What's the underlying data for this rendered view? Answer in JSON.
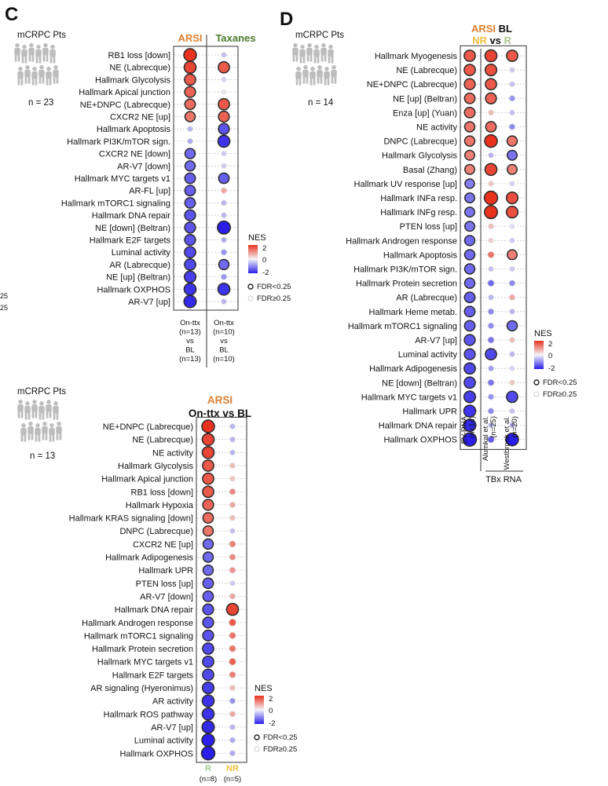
{
  "chart_data": [
    {
      "panel": "C",
      "type": "dotplot",
      "patients_title": "mCRPC Pts",
      "patients_n": "n = 23",
      "column_groups": [
        {
          "label": "ARSI",
          "color": "#e08030"
        },
        {
          "label": "Taxanes",
          "color": "#4a7a2a"
        }
      ],
      "columns": [
        [
          "On-ttx",
          "(n=13)",
          "vs",
          "BL",
          "(n=13)"
        ],
        [
          "On-ttx",
          "(n=10)",
          "vs",
          "BL",
          "(n=10)"
        ]
      ],
      "rows": [
        {
          "label": "RB1 loss [down]",
          "nes": [
            2.0,
            -0.5
          ],
          "fdr_sig": [
            true,
            false
          ]
        },
        {
          "label": "NE (Labrecque)",
          "nes": [
            1.8,
            1.6
          ],
          "fdr_sig": [
            true,
            true
          ]
        },
        {
          "label": "Hallmark Glycolysis",
          "nes": [
            1.6,
            -0.3
          ],
          "fdr_sig": [
            true,
            false
          ]
        },
        {
          "label": "Hallmark Apical junction",
          "nes": [
            1.5,
            -0.1
          ],
          "fdr_sig": [
            true,
            false
          ]
        },
        {
          "label": "NE+DNPC (Labrecque)",
          "nes": [
            1.4,
            1.6
          ],
          "fdr_sig": [
            true,
            true
          ]
        },
        {
          "label": "CXCR2 NE [up]",
          "nes": [
            1.3,
            1.5
          ],
          "fdr_sig": [
            true,
            true
          ]
        },
        {
          "label": "Hallmark Apoptosis",
          "nes": [
            -0.6,
            -1.5
          ],
          "fdr_sig": [
            false,
            true
          ]
        },
        {
          "label": "Hallmark PI3K/mTOR sign.",
          "nes": [
            -0.7,
            -1.8
          ],
          "fdr_sig": [
            false,
            true
          ]
        },
        {
          "label": "CXCR2 NE [down]",
          "nes": [
            -1.3,
            -0.4
          ],
          "fdr_sig": [
            true,
            false
          ]
        },
        {
          "label": "AR-V7 [down]",
          "nes": [
            -1.3,
            -0.4
          ],
          "fdr_sig": [
            true,
            false
          ]
        },
        {
          "label": "Hallmark MYC targets v1",
          "nes": [
            -1.4,
            -1.4
          ],
          "fdr_sig": [
            true,
            true
          ]
        },
        {
          "label": "AR-FL [up]",
          "nes": [
            -1.4,
            0.8
          ],
          "fdr_sig": [
            true,
            false
          ]
        },
        {
          "label": "Hallmark mTORC1 signaling",
          "nes": [
            -1.4,
            -0.6
          ],
          "fdr_sig": [
            true,
            false
          ]
        },
        {
          "label": "Hallmark DNA repair",
          "nes": [
            -1.5,
            -0.6
          ],
          "fdr_sig": [
            true,
            false
          ]
        },
        {
          "label": "NE [down] (Beltran)",
          "nes": [
            -1.5,
            -2.1
          ],
          "fdr_sig": [
            true,
            true
          ]
        },
        {
          "label": "Hallmark E2F targets",
          "nes": [
            -1.5,
            -0.7
          ],
          "fdr_sig": [
            true,
            false
          ]
        },
        {
          "label": "Luminal activity",
          "nes": [
            -1.6,
            -0.9
          ],
          "fdr_sig": [
            true,
            false
          ]
        },
        {
          "label": "AR (Labrecque)",
          "nes": [
            -1.6,
            -1.3
          ],
          "fdr_sig": [
            true,
            true
          ]
        },
        {
          "label": "NE [up] (Beltran)",
          "nes": [
            -1.7,
            -0.9
          ],
          "fdr_sig": [
            true,
            false
          ]
        },
        {
          "label": "Hallmark OXPHOS",
          "nes": [
            -1.8,
            -1.8
          ],
          "fdr_sig": [
            true,
            true
          ]
        },
        {
          "label": "AR-V7 [up]",
          "nes": [
            -1.9,
            -0.6
          ],
          "fdr_sig": [
            true,
            false
          ]
        }
      ],
      "legend": {
        "title": "NES",
        "ticks": [
          "2",
          "0",
          "-2"
        ],
        "fdr_sig": "FDR<0.25",
        "fdr_ns": "FDR≥0.25"
      }
    },
    {
      "panel": "D",
      "type": "dotplot",
      "patients_title": "mCRPC Pts",
      "patients_n": "n = 14",
      "header": [
        {
          "parts": [
            {
              "text": "ARSI",
              "color": "#e08030"
            },
            {
              "text": " BL",
              "color": "#111111"
            }
          ]
        },
        {
          "parts": [
            {
              "text": "NR",
              "color": "#f0c040"
            },
            {
              "text": " vs ",
              "color": "#111111"
            },
            {
              "text": "R",
              "color": "#a8c890"
            }
          ]
        }
      ],
      "columns": [
        [
          "EV-RNA",
          "(n=14)"
        ],
        [
          "Alumkal et al.",
          "(n=25)"
        ],
        [
          "Westbrook et al.",
          "(n=20)"
        ]
      ],
      "group_label": "TBx RNA",
      "rows": [
        {
          "label": "Hallmark Myogenesis",
          "nes": [
            1.6,
            1.8,
            1.6
          ],
          "fdr_sig": [
            true,
            true,
            true
          ]
        },
        {
          "label": "NE (Labrecque)",
          "nes": [
            1.6,
            1.7,
            -0.4
          ],
          "fdr_sig": [
            true,
            true,
            false
          ]
        },
        {
          "label": "NE+DNPC (Labrecque)",
          "nes": [
            1.5,
            1.6,
            -0.5
          ],
          "fdr_sig": [
            true,
            true,
            false
          ]
        },
        {
          "label": "NE [up] (Beltran)",
          "nes": [
            1.4,
            1.5,
            -0.9
          ],
          "fdr_sig": [
            true,
            true,
            false
          ]
        },
        {
          "label": "Enza [up] (Yuan)",
          "nes": [
            1.4,
            0.6,
            -0.5
          ],
          "fdr_sig": [
            true,
            false,
            false
          ]
        },
        {
          "label": "NE activity",
          "nes": [
            1.3,
            1.4,
            -1.0
          ],
          "fdr_sig": [
            true,
            true,
            false
          ]
        },
        {
          "label": "DNPC (Labrecque)",
          "nes": [
            1.3,
            2.0,
            1.3
          ],
          "fdr_sig": [
            true,
            true,
            true
          ]
        },
        {
          "label": "Hallmark Glycolysis",
          "nes": [
            1.2,
            -0.6,
            -1.2
          ],
          "fdr_sig": [
            true,
            false,
            true
          ]
        },
        {
          "label": "Basal (Zhang)",
          "nes": [
            1.2,
            1.8,
            1.2
          ],
          "fdr_sig": [
            true,
            true,
            true
          ]
        },
        {
          "label": "Hallmark UV response [up]",
          "nes": [
            -1.1,
            0.5,
            -0.3
          ],
          "fdr_sig": [
            true,
            false,
            false
          ]
        },
        {
          "label": "Hallmark INFa resp.",
          "nes": [
            -1.2,
            2.2,
            1.7
          ],
          "fdr_sig": [
            true,
            true,
            true
          ]
        },
        {
          "label": "Hallmark INFg resp.",
          "nes": [
            -1.2,
            2.1,
            1.7
          ],
          "fdr_sig": [
            true,
            true,
            true
          ]
        },
        {
          "label": "PTEN loss [up]",
          "nes": [
            -1.2,
            0.6,
            -0.2
          ],
          "fdr_sig": [
            true,
            false,
            false
          ]
        },
        {
          "label": "Hallmark Androgen response",
          "nes": [
            -1.3,
            0.4,
            -0.4
          ],
          "fdr_sig": [
            true,
            false,
            false
          ]
        },
        {
          "label": "Hallmark Apoptosis",
          "nes": [
            -1.3,
            1.3,
            1.2
          ],
          "fdr_sig": [
            true,
            false,
            true
          ]
        },
        {
          "label": "Hallmark PI3K/mTOR sign.",
          "nes": [
            -1.3,
            -0.5,
            -0.4
          ],
          "fdr_sig": [
            true,
            false,
            false
          ]
        },
        {
          "label": "Hallmark Protein secretion",
          "nes": [
            -1.3,
            -1.3,
            -1.0
          ],
          "fdr_sig": [
            true,
            false,
            false
          ]
        },
        {
          "label": "AR (Labrecque)",
          "nes": [
            -1.4,
            -0.6,
            0.8
          ],
          "fdr_sig": [
            true,
            false,
            false
          ]
        },
        {
          "label": "Hallmark Heme metab.",
          "nes": [
            -1.4,
            -1.0,
            -0.6
          ],
          "fdr_sig": [
            true,
            false,
            false
          ]
        },
        {
          "label": "Hallmark mTORC1 signaling",
          "nes": [
            -1.4,
            -1.0,
            -1.3
          ],
          "fdr_sig": [
            true,
            false,
            true
          ]
        },
        {
          "label": "AR-V7 [up]",
          "nes": [
            -1.5,
            -1.2,
            0.6
          ],
          "fdr_sig": [
            true,
            false,
            false
          ]
        },
        {
          "label": "Luminal activity",
          "nes": [
            -1.5,
            -1.6,
            -0.6
          ],
          "fdr_sig": [
            true,
            true,
            false
          ]
        },
        {
          "label": "Hallmark Adipogenesis",
          "nes": [
            -1.6,
            -0.8,
            -0.3
          ],
          "fdr_sig": [
            true,
            false,
            false
          ]
        },
        {
          "label": "NE [down] (Beltran)",
          "nes": [
            -1.6,
            -1.2,
            0.5
          ],
          "fdr_sig": [
            true,
            false,
            false
          ]
        },
        {
          "label": "Hallmark MYC targets v1",
          "nes": [
            -1.7,
            -0.9,
            -1.6
          ],
          "fdr_sig": [
            true,
            false,
            true
          ]
        },
        {
          "label": "Hallmark UPR",
          "nes": [
            -1.8,
            -1.0,
            -0.5
          ],
          "fdr_sig": [
            true,
            false,
            false
          ]
        },
        {
          "label": "Hallmark DNA repair",
          "nes": [
            -1.9,
            -0.6,
            -0.7
          ],
          "fdr_sig": [
            true,
            false,
            false
          ]
        },
        {
          "label": "Hallmark OXPHOS",
          "nes": [
            -2.2,
            -1.4,
            -2.0
          ],
          "fdr_sig": [
            true,
            false,
            true
          ]
        }
      ],
      "legend": {
        "title": "NES",
        "ticks": [
          "2",
          "0",
          "-2"
        ],
        "fdr_sig": "FDR<0.25",
        "fdr_ns": "FDR≥0.25"
      }
    },
    {
      "panel": "",
      "type": "dotplot",
      "patients_title": "mCRPC Pts",
      "patients_n": "n = 13",
      "header": [
        {
          "parts": [
            {
              "text": "ARSI",
              "color": "#e08030"
            }
          ]
        },
        {
          "parts": [
            {
              "text": "On-ttx vs BL",
              "color": "#111111"
            }
          ]
        }
      ],
      "columns": [
        [
          "R",
          "(n=8)"
        ],
        [
          "NR",
          "(n=5)"
        ]
      ],
      "column_colors": [
        "#a8c890",
        "#f0c040"
      ],
      "rows": [
        {
          "label": "NE+DNPC (Labrecque)",
          "nes": [
            2.0,
            -0.6
          ],
          "fdr_sig": [
            true,
            false
          ]
        },
        {
          "label": "NE (Labrecque)",
          "nes": [
            1.8,
            -0.6
          ],
          "fdr_sig": [
            true,
            false
          ]
        },
        {
          "label": "NE activity",
          "nes": [
            1.8,
            -0.6
          ],
          "fdr_sig": [
            true,
            false
          ]
        },
        {
          "label": "Hallmark Glycolysis",
          "nes": [
            1.6,
            0.6
          ],
          "fdr_sig": [
            true,
            false
          ]
        },
        {
          "label": "Hallmark Apical junction",
          "nes": [
            1.6,
            0.5
          ],
          "fdr_sig": [
            true,
            false
          ]
        },
        {
          "label": "RB1 loss [down]",
          "nes": [
            1.6,
            1.1
          ],
          "fdr_sig": [
            true,
            false
          ]
        },
        {
          "label": "Hallmark Hypoxia",
          "nes": [
            1.5,
            0.8
          ],
          "fdr_sig": [
            true,
            false
          ]
        },
        {
          "label": "Hallmark KRAS signaling [down]",
          "nes": [
            1.4,
            0.6
          ],
          "fdr_sig": [
            true,
            false
          ]
        },
        {
          "label": "DNPC (Labrecque)",
          "nes": [
            1.3,
            -0.5
          ],
          "fdr_sig": [
            true,
            false
          ]
        },
        {
          "label": "CXCR2 NE [up]",
          "nes": [
            -1.3,
            1.2
          ],
          "fdr_sig": [
            true,
            false
          ]
        },
        {
          "label": "Hallmark Adipogenesis",
          "nes": [
            -1.3,
            1.1
          ],
          "fdr_sig": [
            true,
            false
          ]
        },
        {
          "label": "Hallmark UPR",
          "nes": [
            -1.3,
            1.0
          ],
          "fdr_sig": [
            true,
            false
          ]
        },
        {
          "label": "PTEN loss [up]",
          "nes": [
            -1.4,
            -0.4
          ],
          "fdr_sig": [
            true,
            false
          ]
        },
        {
          "label": "AR-V7 [down]",
          "nes": [
            -1.4,
            0.8
          ],
          "fdr_sig": [
            true,
            false
          ]
        },
        {
          "label": "Hallmark DNA repair",
          "nes": [
            -1.5,
            1.8
          ],
          "fdr_sig": [
            true,
            true
          ]
        },
        {
          "label": "Hallmark Androgen response",
          "nes": [
            -1.5,
            1.6
          ],
          "fdr_sig": [
            true,
            false
          ]
        },
        {
          "label": "Hallmark mTORC1 signaling",
          "nes": [
            -1.5,
            1.3
          ],
          "fdr_sig": [
            true,
            false
          ]
        },
        {
          "label": "Hallmark Protein secretion",
          "nes": [
            -1.6,
            1.3
          ],
          "fdr_sig": [
            true,
            false
          ]
        },
        {
          "label": "Hallmark MYC targets v1",
          "nes": [
            -1.6,
            1.5
          ],
          "fdr_sig": [
            true,
            false
          ]
        },
        {
          "label": "Hallmark E2F targets",
          "nes": [
            -1.6,
            1.2
          ],
          "fdr_sig": [
            true,
            false
          ]
        },
        {
          "label": "AR signaling (Hyeronimus)",
          "nes": [
            -1.7,
            0.6
          ],
          "fdr_sig": [
            true,
            false
          ]
        },
        {
          "label": "AR activity",
          "nes": [
            -1.8,
            -0.9
          ],
          "fdr_sig": [
            true,
            false
          ]
        },
        {
          "label": "Hallmark ROS pathway",
          "nes": [
            -1.8,
            0.8
          ],
          "fdr_sig": [
            true,
            false
          ]
        },
        {
          "label": "AR-V7 [up]",
          "nes": [
            -1.9,
            -0.6
          ],
          "fdr_sig": [
            true,
            false
          ]
        },
        {
          "label": "Luminal activity",
          "nes": [
            -2.0,
            -0.7
          ],
          "fdr_sig": [
            true,
            false
          ]
        },
        {
          "label": "Hallmark OXPHOS",
          "nes": [
            -2.2,
            -0.7
          ],
          "fdr_sig": [
            true,
            false
          ]
        }
      ],
      "legend": {
        "title": "NES",
        "ticks": [
          "2",
          "0",
          "-2"
        ],
        "fdr_sig": "FDR<0.25",
        "fdr_ns": "FDR≥0.25"
      }
    }
  ],
  "clipped_text": [
    "25",
    "25"
  ],
  "colors": {
    "positive": "#e8321e",
    "neutral": "#f4f4f8",
    "negative": "#2a1ee8"
  }
}
